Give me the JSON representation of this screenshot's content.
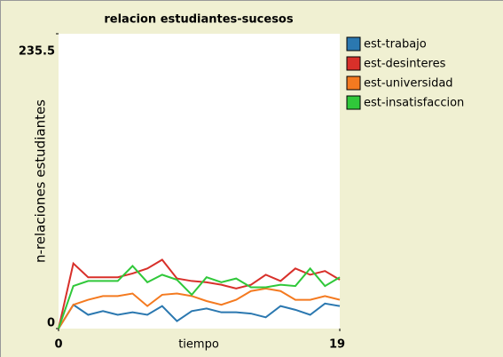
{
  "chart_data": {
    "type": "line",
    "title": "relacion estudiantes-sucesos",
    "x_label": "tiempo",
    "y_label": "n-relaciones estudiantes",
    "x": [
      0,
      1,
      2,
      3,
      4,
      5,
      6,
      7,
      8,
      9,
      10,
      11,
      12,
      13,
      14,
      15,
      16,
      17,
      18,
      19
    ],
    "xlim": [
      0,
      19
    ],
    "xticks": [
      0,
      19
    ],
    "ylim": [
      0,
      235.5
    ],
    "yticks": [
      0,
      235.5
    ],
    "legend": "right",
    "series": [
      {
        "name": "est-trabajo",
        "color": "#2b78b0",
        "values": [
          0,
          19,
          11,
          14,
          11,
          13,
          11,
          18,
          6,
          14,
          16,
          13,
          13,
          12,
          9,
          18,
          15,
          11,
          20,
          18
        ]
      },
      {
        "name": "est-desinteres",
        "color": "#d8302a",
        "values": [
          0,
          52,
          41,
          41,
          41,
          44,
          48,
          55,
          40,
          38,
          37,
          35,
          32,
          35,
          43,
          38,
          48,
          43,
          46,
          39
        ]
      },
      {
        "name": "est-universidad",
        "color": "#f47a20",
        "values": [
          0,
          19,
          23,
          26,
          26,
          28,
          18,
          27,
          28,
          26,
          22,
          19,
          23,
          30,
          32,
          30,
          23,
          23,
          26,
          23
        ]
      },
      {
        "name": "est-insatisfaccion",
        "color": "#30c83a",
        "values": [
          0,
          34,
          38,
          38,
          38,
          50,
          37,
          43,
          39,
          27,
          41,
          37,
          40,
          33,
          33,
          35,
          34,
          48,
          34,
          41
        ]
      }
    ]
  }
}
